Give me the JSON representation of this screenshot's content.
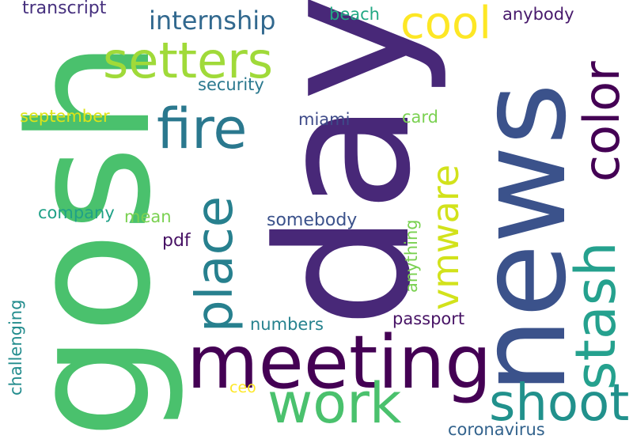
{
  "words": [
    {
      "text": "gosh",
      "color": "#4ac16d"
    },
    {
      "text": "day",
      "color": "#482878"
    },
    {
      "text": "news",
      "color": "#3b528b"
    },
    {
      "text": "meeting",
      "color": "#440154"
    },
    {
      "text": "work",
      "color": "#4ac16d"
    },
    {
      "text": "shoot",
      "color": "#21918c"
    },
    {
      "text": "stash",
      "color": "#25a18e"
    },
    {
      "text": "color",
      "color": "#440154"
    },
    {
      "text": "setters",
      "color": "#a0da39"
    },
    {
      "text": "fire",
      "color": "#2a788e"
    },
    {
      "text": "place",
      "color": "#27808e"
    },
    {
      "text": "cool",
      "color": "#fde725"
    },
    {
      "text": "vmware",
      "color": "#d2e21b"
    },
    {
      "text": "internship",
      "color": "#31688e"
    },
    {
      "text": "transcript",
      "color": "#46307e"
    },
    {
      "text": "beach",
      "color": "#22a884"
    },
    {
      "text": "anybody",
      "color": "#481a6c"
    },
    {
      "text": "security",
      "color": "#2a788e"
    },
    {
      "text": "september",
      "color": "#dde318"
    },
    {
      "text": "miami",
      "color": "#3e4a89"
    },
    {
      "text": "card",
      "color": "#7ad151"
    },
    {
      "text": "company",
      "color": "#1fa187"
    },
    {
      "text": "mean",
      "color": "#7ad151"
    },
    {
      "text": "somebody",
      "color": "#3b528b"
    },
    {
      "text": "anything",
      "color": "#7ad151"
    },
    {
      "text": "pdf",
      "color": "#471164"
    },
    {
      "text": "challenging",
      "color": "#228c8d"
    },
    {
      "text": "numbers",
      "color": "#26828e"
    },
    {
      "text": "passport",
      "color": "#471365"
    },
    {
      "text": "ceo",
      "color": "#fde725"
    },
    {
      "text": "coronavirus",
      "color": "#33638d"
    }
  ]
}
